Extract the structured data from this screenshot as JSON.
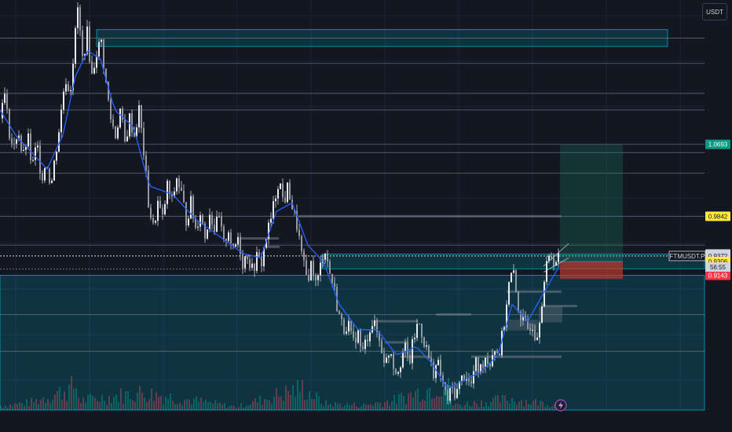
{
  "header": {
    "currency_label": "USDT"
  },
  "symbol": {
    "name": "FTMUSDT.P",
    "price": "0.9372",
    "countdown": "56:55"
  },
  "colors": {
    "background": "#131722",
    "zone": "#00bcd4",
    "candle": "#d1d4dc",
    "ma": "#2962ff",
    "target": "#1a9a7d",
    "stop": "#c0392b",
    "label_green": "#089981",
    "label_yellow": "#ffeb3b",
    "label_red": "#f23645",
    "label_white": "#b2b5be"
  },
  "chart_data": {
    "type": "candlestick",
    "symbol": "FTMUSDT.P",
    "quote_currency": "USDT",
    "overlays": [
      "moving-average",
      "volume-histogram",
      "supply-demand-zones",
      "long-position-tool"
    ],
    "ylim": [
      0.755,
      1.24
    ],
    "grid": true,
    "price_path": [
      [
        0,
        1.1
      ],
      [
        3,
        1.14
      ],
      [
        10,
        1.09
      ],
      [
        16,
        1.06
      ],
      [
        22,
        1.09
      ],
      [
        28,
        1.05
      ],
      [
        34,
        1.08
      ],
      [
        40,
        1.04
      ],
      [
        46,
        1.07
      ],
      [
        52,
        1.03
      ],
      [
        58,
        1.05
      ],
      [
        64,
        1.02
      ],
      [
        70,
        1.06
      ],
      [
        76,
        1.1
      ],
      [
        82,
        1.15
      ],
      [
        88,
        1.13
      ],
      [
        94,
        1.19
      ],
      [
        98,
        1.23
      ],
      [
        104,
        1.17
      ],
      [
        110,
        1.2
      ],
      [
        116,
        1.15
      ],
      [
        122,
        1.18
      ],
      [
        128,
        1.19
      ],
      [
        134,
        1.14
      ],
      [
        140,
        1.1
      ],
      [
        146,
        1.08
      ],
      [
        152,
        1.11
      ],
      [
        158,
        1.07
      ],
      [
        164,
        1.1
      ],
      [
        170,
        1.08
      ],
      [
        176,
        1.11
      ],
      [
        182,
        1.06
      ],
      [
        188,
        1.0
      ],
      [
        194,
        0.97
      ],
      [
        200,
        1.0
      ],
      [
        206,
        0.98
      ],
      [
        212,
        1.02
      ],
      [
        218,
        1.0
      ],
      [
        224,
        1.03
      ],
      [
        230,
        1.01
      ],
      [
        236,
        0.98
      ],
      [
        242,
        1.0
      ],
      [
        248,
        0.97
      ],
      [
        254,
        0.99
      ],
      [
        260,
        0.96
      ],
      [
        266,
        0.99
      ],
      [
        272,
        0.97
      ],
      [
        278,
        0.98
      ],
      [
        284,
        0.95
      ],
      [
        290,
        0.97
      ],
      [
        296,
        0.94
      ],
      [
        302,
        0.96
      ],
      [
        308,
        0.93
      ],
      [
        314,
        0.94
      ],
      [
        320,
        0.92
      ],
      [
        326,
        0.935
      ],
      [
        332,
        0.93
      ],
      [
        338,
        0.96
      ],
      [
        344,
        0.98
      ],
      [
        350,
        1.01
      ],
      [
        354,
        1.03
      ],
      [
        360,
        1.0
      ],
      [
        366,
        1.02
      ],
      [
        372,
        0.99
      ],
      [
        378,
        0.97
      ],
      [
        384,
        0.93
      ],
      [
        390,
        0.91
      ],
      [
        396,
        0.93
      ],
      [
        402,
        0.9
      ],
      [
        408,
        0.93
      ],
      [
        412,
        0.95
      ],
      [
        418,
        0.92
      ],
      [
        424,
        0.9
      ],
      [
        430,
        0.87
      ],
      [
        436,
        0.85
      ],
      [
        442,
        0.86
      ],
      [
        448,
        0.83
      ],
      [
        454,
        0.85
      ],
      [
        460,
        0.82
      ],
      [
        466,
        0.84
      ],
      [
        472,
        0.86
      ],
      [
        478,
        0.85
      ],
      [
        484,
        0.83
      ],
      [
        490,
        0.81
      ],
      [
        496,
        0.83
      ],
      [
        502,
        0.8
      ],
      [
        508,
        0.81
      ],
      [
        514,
        0.83
      ],
      [
        520,
        0.81
      ],
      [
        526,
        0.84
      ],
      [
        532,
        0.86
      ],
      [
        538,
        0.84
      ],
      [
        544,
        0.82
      ],
      [
        550,
        0.8
      ],
      [
        556,
        0.81
      ],
      [
        562,
        0.79
      ],
      [
        568,
        0.765
      ],
      [
        574,
        0.78
      ],
      [
        580,
        0.775
      ],
      [
        586,
        0.79
      ],
      [
        592,
        0.8
      ],
      [
        598,
        0.78
      ],
      [
        604,
        0.81
      ],
      [
        610,
        0.8
      ],
      [
        616,
        0.82
      ],
      [
        622,
        0.81
      ],
      [
        628,
        0.83
      ],
      [
        634,
        0.82
      ],
      [
        640,
        0.85
      ],
      [
        646,
        0.9
      ],
      [
        652,
        0.92
      ],
      [
        658,
        0.88
      ],
      [
        664,
        0.86
      ],
      [
        670,
        0.85
      ],
      [
        676,
        0.86
      ],
      [
        682,
        0.84
      ],
      [
        688,
        0.88
      ],
      [
        694,
        0.92
      ],
      [
        700,
        0.94
      ],
      [
        706,
        0.93
      ],
      [
        712,
        0.937
      ]
    ],
    "ma_path": [
      [
        0,
        1.11
      ],
      [
        20,
        1.08
      ],
      [
        40,
        1.06
      ],
      [
        60,
        1.04
      ],
      [
        80,
        1.08
      ],
      [
        96,
        1.15
      ],
      [
        112,
        1.18
      ],
      [
        128,
        1.17
      ],
      [
        146,
        1.11
      ],
      [
        170,
        1.09
      ],
      [
        190,
        1.02
      ],
      [
        220,
        1.01
      ],
      [
        250,
        0.98
      ],
      [
        280,
        0.96
      ],
      [
        310,
        0.94
      ],
      [
        332,
        0.935
      ],
      [
        352,
        0.99
      ],
      [
        372,
        1.0
      ],
      [
        392,
        0.95
      ],
      [
        412,
        0.93
      ],
      [
        432,
        0.88
      ],
      [
        456,
        0.85
      ],
      [
        480,
        0.85
      ],
      [
        505,
        0.82
      ],
      [
        530,
        0.83
      ],
      [
        550,
        0.81
      ],
      [
        570,
        0.78
      ],
      [
        590,
        0.79
      ],
      [
        612,
        0.8
      ],
      [
        634,
        0.82
      ],
      [
        652,
        0.88
      ],
      [
        672,
        0.86
      ],
      [
        690,
        0.89
      ],
      [
        712,
        0.925
      ]
    ],
    "volume_path": [
      [
        0,
        5
      ],
      [
        40,
        10
      ],
      [
        96,
        30
      ],
      [
        100,
        12
      ],
      [
        180,
        22
      ],
      [
        300,
        4
      ],
      [
        384,
        28
      ],
      [
        412,
        8
      ],
      [
        460,
        6
      ],
      [
        500,
        12
      ],
      [
        568,
        35
      ],
      [
        576,
        6
      ],
      [
        650,
        14
      ],
      [
        712,
        6
      ]
    ],
    "zones": [
      {
        "name": "upper-supply",
        "top": 1.205,
        "bottom": 1.185
      },
      {
        "name": "mid-zone",
        "top": 0.9395,
        "bottom": 0.922
      },
      {
        "name": "demand-zone",
        "top": 0.9143,
        "bottom": 0.755
      }
    ],
    "horizontal_levels": [
      1.195,
      1.165,
      1.1295,
      1.11,
      1.0693,
      1.0595,
      1.035,
      0.9842,
      0.95,
      0.868,
      0.8245
    ],
    "position_tool": {
      "target": 1.0693,
      "entry": 0.9306,
      "stop": 0.91
    },
    "price_labels": [
      {
        "value": 1.0693,
        "text": "1.0693",
        "style": "green"
      },
      {
        "value": 0.9842,
        "text": "0.9842",
        "style": "yellow"
      },
      {
        "value": 0.9395,
        "text": "0.9395",
        "style": "white"
      },
      {
        "value": 0.9372,
        "text": "0.9372",
        "style": "white"
      },
      {
        "value": 0.9306,
        "text": "0.9306",
        "style": "yellow"
      },
      {
        "value": 0.9143,
        "text": "0.9143",
        "style": "red"
      }
    ]
  }
}
